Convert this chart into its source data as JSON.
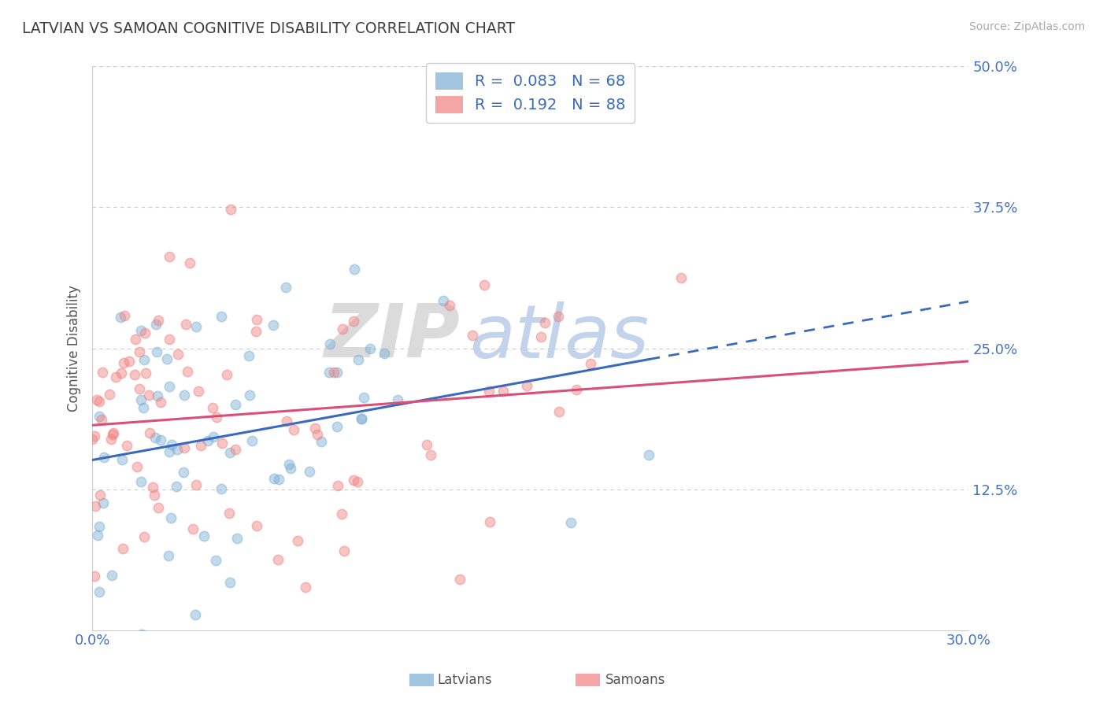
{
  "title": "LATVIAN VS SAMOAN COGNITIVE DISABILITY CORRELATION CHART",
  "source": "Source: ZipAtlas.com",
  "xlabel_latvians": "Latvians",
  "xlabel_samoans": "Samoans",
  "ylabel": "Cognitive Disability",
  "xlim": [
    0.0,
    0.3
  ],
  "ylim": [
    0.0,
    0.5
  ],
  "xtick_labels": [
    "0.0%",
    "30.0%"
  ],
  "xtick_values": [
    0.0,
    0.3
  ],
  "ytick_labels": [
    "12.5%",
    "25.0%",
    "37.5%",
    "50.0%"
  ],
  "ytick_values": [
    0.125,
    0.25,
    0.375,
    0.5
  ],
  "latvian_color": "#7bafd4",
  "samoan_color": "#f08080",
  "latvian_line_color": "#3a6abf",
  "samoan_line_color": "#d94f7a",
  "grid_color": "#cccccc",
  "background_color": "#ffffff",
  "title_color": "#404040",
  "axis_label_color": "#4472c4",
  "watermark_zip": "ZIP",
  "watermark_atlas": "atlas",
  "latvian_N": 68,
  "samoan_N": 88,
  "latvian_seed": 7,
  "samoan_seed": 13,
  "legend_r_latvian": "0.083",
  "legend_n_latvian": "68",
  "legend_r_samoan": "0.192",
  "legend_n_samoan": "88"
}
